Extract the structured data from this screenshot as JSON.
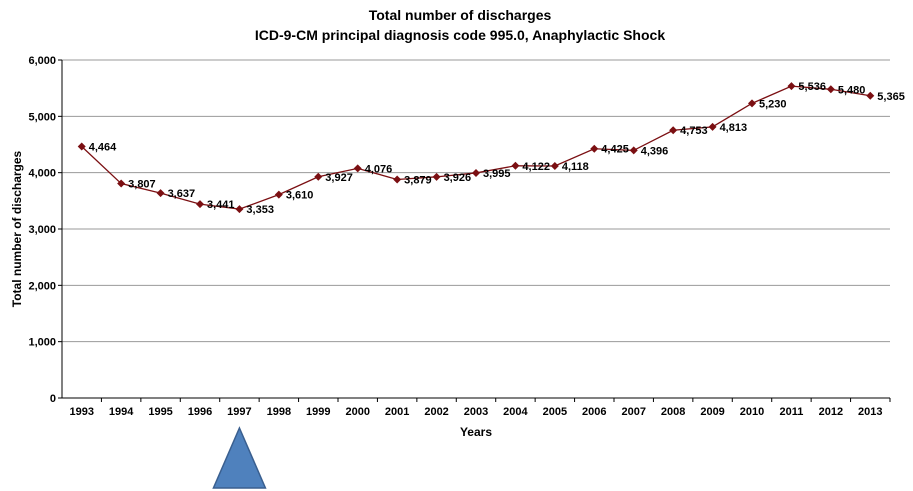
{
  "chart_data": {
    "type": "line",
    "title": "Total number of discharges",
    "subtitle": "ICD-9-CM principal diagnosis code 995.0, Anaphylactic Shock",
    "xlabel": "Years",
    "ylabel": "Total number of discharges",
    "ylim": [
      0,
      6000
    ],
    "y_ticks": [
      "0",
      "1,000",
      "2,000",
      "3,000",
      "4,000",
      "5,000",
      "6,000"
    ],
    "grid": true,
    "categories": [
      "1993",
      "1994",
      "1995",
      "1996",
      "1997",
      "1998",
      "1999",
      "2000",
      "2001",
      "2002",
      "2003",
      "2004",
      "2005",
      "2006",
      "2007",
      "2008",
      "2009",
      "2010",
      "2011",
      "2012",
      "2013"
    ],
    "series": [
      {
        "name": "Total number of discharges",
        "values": [
          4464,
          3807,
          3637,
          3441,
          3353,
          3610,
          3927,
          4076,
          3879,
          3926,
          3995,
          4122,
          4118,
          4425,
          4396,
          4753,
          4813,
          5230,
          5536,
          5480,
          5365
        ],
        "labels": [
          "4,464",
          "3,807",
          "3,637",
          "3,441",
          "3,353",
          "3,610",
          "3,927",
          "4,076",
          "3,879",
          "3,926",
          "3,995",
          "4,122",
          "4,118",
          "4,425",
          "4,396",
          "4,753",
          "4,813",
          "5,230",
          "5,536",
          "5,480",
          "5,365"
        ],
        "color": "#7b0f12"
      }
    ],
    "annotations": [
      {
        "type": "triangle-marker",
        "at_category": "1997",
        "color": "#4f81bd"
      }
    ]
  }
}
